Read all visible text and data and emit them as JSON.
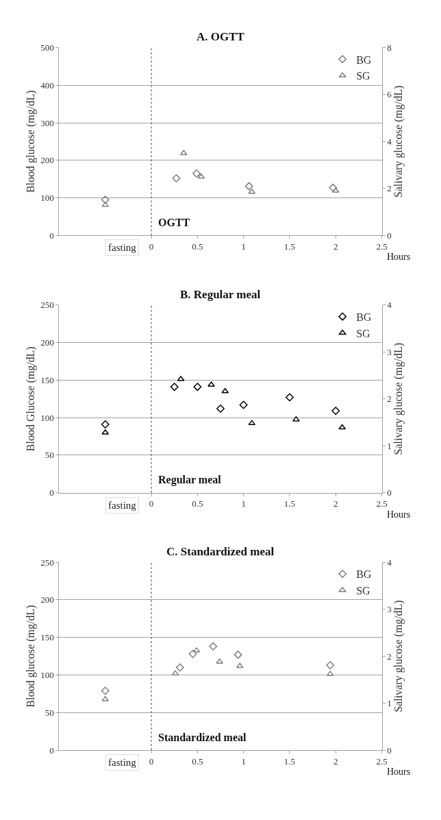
{
  "chart_data": [
    {
      "type": "scatter",
      "title": "A. OGTT",
      "xlabel": "Hours",
      "ylabel": "Blood glucose (mg/dL)",
      "y2label": "Salivary glucose (mg/dL)",
      "xlim": [
        -1,
        2.5
      ],
      "xticks": [
        0,
        0.5,
        1,
        1.5,
        2,
        2.5
      ],
      "annotations": [
        "fasting"
      ],
      "ylim": [
        0,
        500
      ],
      "yticks": [
        0,
        100,
        200,
        300,
        400,
        500
      ],
      "y2lim": [
        0,
        8
      ],
      "y2ticks": [
        0,
        2,
        4,
        6,
        8
      ],
      "grid": "y",
      "legend": "top right",
      "ref_lines": [
        {
          "axis": "x",
          "value": 0,
          "label": "OGTT",
          "line_style": "dotted",
          "color": "#404040"
        }
      ],
      "series": [
        {
          "name": "BG",
          "color": "#7f7f7f",
          "marker": "diamond",
          "x": [
            -0.5,
            0.27,
            0.49,
            1.06,
            1.97
          ],
          "values": [
            95,
            152,
            165,
            131,
            127
          ]
        },
        {
          "name": "SG",
          "color": "#7f7f7f",
          "marker": "triangle",
          "axis": "y2",
          "x": [
            -0.5,
            0.35,
            0.54,
            1.09,
            2.0
          ],
          "values": [
            1.3,
            3.5,
            2.5,
            1.85,
            1.9
          ]
        }
      ]
    },
    {
      "type": "scatter",
      "title": "B. Regular meal",
      "xlabel": "Hours",
      "ylabel": "Blood Glucose (mg/dL)",
      "y2label": "Salivary glucose (mg/dL)",
      "xlim": [
        -1,
        2.5
      ],
      "xticks": [
        0,
        0.5,
        1,
        1.5,
        2,
        2.5
      ],
      "annotations": [
        "fasting"
      ],
      "ylim": [
        0,
        250
      ],
      "yticks": [
        0,
        50,
        100,
        150,
        200,
        250
      ],
      "y2lim": [
        0,
        4
      ],
      "y2ticks": [
        0,
        1,
        2,
        3,
        4
      ],
      "grid": "y",
      "legend": "top right",
      "ref_lines": [
        {
          "axis": "x",
          "value": 0,
          "label": "Regular meal",
          "line_style": "dotted",
          "color": "#404040"
        }
      ],
      "series": [
        {
          "name": "BG",
          "color": "#000000",
          "marker": "diamond",
          "x": [
            -0.5,
            0.25,
            0.5,
            0.75,
            1.0,
            1.5,
            2.0
          ],
          "values": [
            91,
            141,
            141,
            112,
            117,
            127,
            109
          ]
        },
        {
          "name": "SG",
          "color": "#000000",
          "marker": "triangle",
          "axis": "y2",
          "x": [
            -0.5,
            0.32,
            0.65,
            0.8,
            1.09,
            1.57,
            2.07
          ],
          "values": [
            1.28,
            2.42,
            2.3,
            2.16,
            1.48,
            1.56,
            1.39
          ]
        }
      ]
    },
    {
      "type": "scatter",
      "title": "C. Standardized meal",
      "xlabel": "Hours",
      "ylabel": "Blood glucose (mg/dL)",
      "y2label": "Salivary glucose (mg/dL)",
      "xlim": [
        -1,
        2.5
      ],
      "xticks": [
        0,
        0.5,
        1,
        1.5,
        2,
        2.5
      ],
      "annotations": [
        "fasting"
      ],
      "ylim": [
        0,
        250
      ],
      "yticks": [
        0,
        50,
        100,
        150,
        200,
        250
      ],
      "y2lim": [
        0,
        4
      ],
      "y2ticks": [
        0,
        1,
        2,
        3,
        4
      ],
      "grid": "y",
      "legend": "top right",
      "ref_lines": [
        {
          "axis": "x",
          "value": 0,
          "label": "Standardized meal",
          "line_style": "dotted",
          "color": "#404040"
        }
      ],
      "series": [
        {
          "name": "BG",
          "color": "#7f7f7f",
          "marker": "diamond",
          "x": [
            -0.5,
            0.31,
            0.45,
            0.67,
            0.94,
            1.94
          ],
          "values": [
            79,
            110,
            128,
            138,
            127,
            113
          ]
        },
        {
          "name": "SG",
          "color": "#7f7f7f",
          "marker": "triangle",
          "axis": "y2",
          "x": [
            -0.5,
            0.26,
            0.49,
            0.74,
            0.96,
            1.94
          ],
          "values": [
            1.08,
            1.63,
            2.12,
            1.88,
            1.79,
            1.62
          ]
        }
      ]
    }
  ]
}
